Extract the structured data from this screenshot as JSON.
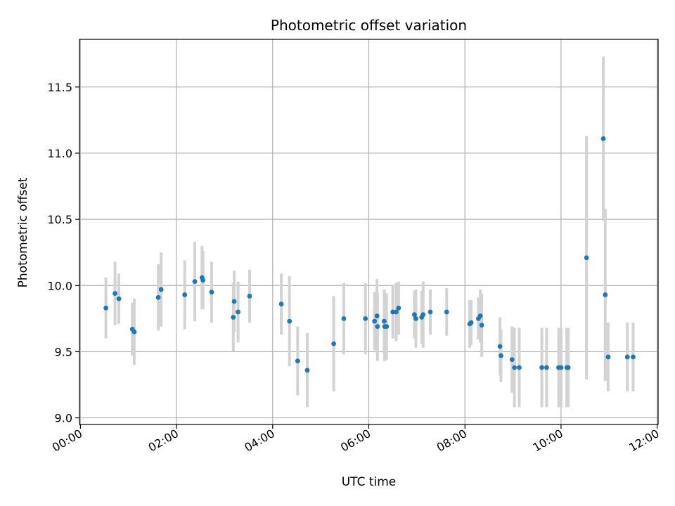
{
  "chart_data": {
    "type": "scatter",
    "title": "Photometric offset variation",
    "xlabel": "UTC time",
    "ylabel": "Photometric offset",
    "xlim": [
      -0.02,
      12.02
    ],
    "ylim": [
      8.95,
      11.86
    ],
    "x_ticks": [
      0,
      2,
      4,
      6,
      8,
      10,
      12
    ],
    "x_tick_labels": [
      "00:00",
      "02:00",
      "04:00",
      "06:00",
      "08:00",
      "10:00",
      "12:00"
    ],
    "y_ticks": [
      9.0,
      9.5,
      10.0,
      10.5,
      11.0,
      11.5
    ],
    "y_tick_labels": [
      "9.0",
      "9.5",
      "10.0",
      "10.5",
      "11.0",
      "11.5"
    ],
    "grid": true,
    "colors": {
      "point": "#1f77b4",
      "errorbar": "#d3d3d3",
      "grid": "#b0b0b0"
    },
    "series": [
      {
        "name": "Photometric offset",
        "x": [
          0.53,
          0.72,
          0.8,
          1.08,
          1.12,
          1.62,
          1.68,
          2.17,
          2.38,
          2.53,
          2.55,
          2.73,
          3.18,
          3.2,
          3.28,
          3.52,
          4.18,
          4.35,
          4.52,
          4.72,
          5.27,
          5.48,
          5.93,
          6.12,
          6.17,
          6.18,
          6.32,
          6.33,
          6.37,
          6.5,
          6.57,
          6.62,
          6.95,
          6.98,
          7.1,
          7.13,
          7.28,
          7.62,
          8.1,
          8.13,
          8.28,
          8.32,
          8.35,
          8.73,
          8.75,
          8.98,
          9.03,
          9.13,
          9.6,
          9.7,
          9.95,
          10.0,
          10.12,
          10.15,
          10.53,
          10.88,
          10.92,
          10.98,
          11.38,
          11.5
        ],
        "y": [
          9.83,
          9.94,
          9.9,
          9.67,
          9.65,
          9.91,
          9.97,
          9.93,
          10.03,
          10.06,
          10.04,
          9.95,
          9.76,
          9.88,
          9.8,
          9.92,
          9.86,
          9.73,
          9.43,
          9.36,
          9.56,
          9.75,
          9.75,
          9.73,
          9.77,
          9.69,
          9.73,
          9.69,
          9.69,
          9.8,
          9.8,
          9.83,
          9.78,
          9.75,
          9.76,
          9.78,
          9.8,
          9.8,
          9.71,
          9.72,
          9.75,
          9.77,
          9.7,
          9.54,
          9.47,
          9.44,
          9.38,
          9.38,
          9.38,
          9.38,
          9.38,
          9.38,
          9.38,
          9.38,
          10.21,
          11.11,
          9.93,
          9.46,
          9.46,
          9.46
        ],
        "yerr": [
          0.23,
          0.24,
          0.19,
          0.2,
          0.25,
          0.25,
          0.28,
          0.26,
          0.3,
          0.24,
          0.22,
          0.23,
          0.26,
          0.23,
          0.23,
          0.2,
          0.23,
          0.34,
          0.26,
          0.28,
          0.36,
          0.27,
          0.27,
          0.22,
          0.28,
          0.26,
          0.24,
          0.26,
          0.25,
          0.2,
          0.22,
          0.2,
          0.18,
          0.22,
          0.2,
          0.25,
          0.17,
          0.18,
          0.18,
          0.17,
          0.16,
          0.2,
          0.24,
          0.22,
          0.2,
          0.25,
          0.3,
          0.3,
          0.3,
          0.3,
          0.3,
          0.3,
          0.3,
          0.3,
          0.92,
          0.62,
          0.65,
          0.26,
          0.26,
          0.26
        ]
      }
    ]
  }
}
